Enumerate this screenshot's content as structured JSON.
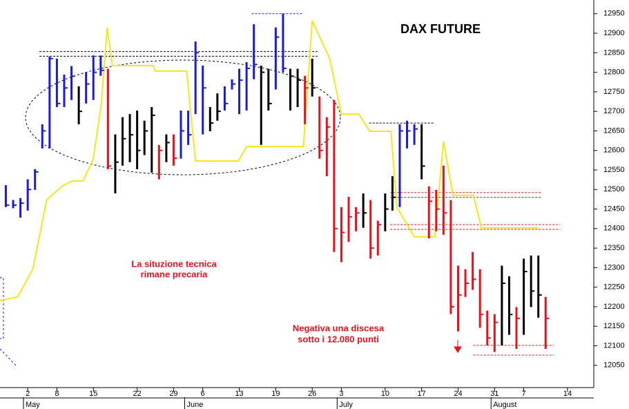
{
  "chart_data": {
    "type": "ohlc",
    "title": "DAX FUTURE",
    "annotations": [
      "La situzione tecnica",
      "rimane precaria",
      "Negativa una discesa",
      "sotto i 12.080 punti"
    ],
    "xlim": [
      -3.8,
      77.6
    ],
    "ylim": [
      11993,
      12985
    ],
    "yticks": [
      12050,
      12100,
      12150,
      12200,
      12250,
      12300,
      12350,
      12400,
      12450,
      12500,
      12550,
      12600,
      12650,
      12700,
      12750,
      12800,
      12850,
      12900,
      12950
    ],
    "xticks": [
      {
        "value": 0,
        "label": "2"
      },
      {
        "value": 4,
        "label": "8"
      },
      {
        "value": 9,
        "label": "15"
      },
      {
        "value": 15,
        "label": "22"
      },
      {
        "value": 20,
        "label": "29"
      },
      {
        "value": 24,
        "label": "6"
      },
      {
        "value": 29,
        "label": "13"
      },
      {
        "value": 34,
        "label": "19"
      },
      {
        "value": 39,
        "label": "26"
      },
      {
        "value": 43,
        "label": "3"
      },
      {
        "value": 49,
        "label": "10"
      },
      {
        "value": 54,
        "label": "17"
      },
      {
        "value": 59,
        "label": "24"
      },
      {
        "value": 64,
        "label": "31"
      },
      {
        "value": 68,
        "label": "7"
      },
      {
        "value": 74,
        "label": "14"
      }
    ],
    "months": [
      {
        "value": -0.3,
        "label": "May"
      },
      {
        "value": 21.8,
        "label": "June"
      },
      {
        "value": 42.7,
        "label": "July"
      },
      {
        "value": 63.8,
        "label": "August"
      }
    ],
    "x": [
      -3,
      -2,
      -1,
      0,
      1,
      2,
      3,
      4,
      5,
      6,
      7,
      8,
      9,
      10,
      11,
      12,
      13,
      14,
      15,
      16,
      17,
      18,
      19,
      20,
      21,
      22,
      23,
      24,
      25,
      26,
      27,
      28,
      29,
      30,
      31,
      32,
      33,
      34,
      35,
      36,
      37,
      38,
      39,
      40,
      41,
      42,
      43,
      44,
      45,
      46,
      47,
      48,
      49,
      50,
      51,
      52,
      53,
      54,
      55,
      56,
      57,
      58,
      59,
      60,
      61,
      62,
      63,
      64,
      65,
      66,
      67,
      68,
      69,
      70,
      71
    ],
    "high": [
      12511,
      12473,
      12478,
      12526,
      12552,
      12667,
      12840,
      12835,
      12794,
      12816,
      12764,
      12800,
      12843,
      12843,
      12809,
      12641,
      12685,
      12693,
      12702,
      12676,
      12711,
      12614,
      12641,
      12641,
      12702,
      12702,
      12879,
      12817,
      12711,
      12746,
      12764,
      12782,
      12809,
      12826,
      12923,
      12817,
      12809,
      12915,
      12950,
      12809,
      12809,
      12791,
      12835,
      12738,
      12685,
      12729,
      12455,
      12481,
      12455,
      12490,
      12473,
      12420,
      12490,
      12534,
      12667,
      12676,
      12667,
      12667,
      12508,
      12499,
      12561,
      12473,
      12305,
      12296,
      12340,
      12296,
      12190,
      12181,
      12305,
      12278,
      12199,
      12323,
      12331,
      12331,
      12225
    ],
    "low": [
      12455,
      12452,
      12428,
      12446,
      12499,
      12605,
      12605,
      12711,
      12711,
      12729,
      12667,
      12720,
      12729,
      12791,
      12552,
      12490,
      12561,
      12570,
      12552,
      12588,
      12543,
      12526,
      12570,
      12561,
      12579,
      12614,
      12693,
      12641,
      12649,
      12676,
      12702,
      12756,
      12693,
      12702,
      12782,
      12614,
      12702,
      12756,
      12800,
      12702,
      12711,
      12667,
      12738,
      12579,
      12534,
      12340,
      12314,
      12366,
      12393,
      12402,
      12323,
      12331,
      12393,
      12446,
      12455,
      12605,
      12614,
      12526,
      12375,
      12393,
      12384,
      12181,
      12137,
      12225,
      12243,
      12146,
      12101,
      12084,
      12101,
      12128,
      12092,
      12128,
      12199,
      12172,
      12092
    ],
    "close": [
      12460,
      12460,
      12465,
      12500,
      12545,
      12650,
      12835,
      12720,
      12760,
      12790,
      12700,
      12770,
      12800,
      12805,
      12560,
      12570,
      12630,
      12640,
      12600,
      12650,
      12690,
      12600,
      12620,
      12580,
      12650,
      12640,
      12850,
      12760,
      12670,
      12700,
      12720,
      12770,
      12780,
      12810,
      12820,
      12800,
      12720,
      12890,
      12810,
      12790,
      12780,
      12760,
      12760,
      12600,
      12660,
      12400,
      12390,
      12430,
      12440,
      12440,
      12350,
      12410,
      12450,
      12480,
      12650,
      12650,
      12655,
      12560,
      12470,
      12450,
      12440,
      12200,
      12230,
      12260,
      12270,
      12180,
      12120,
      12160,
      12260,
      12180,
      12170,
      12290,
      12240,
      12230,
      12170
    ],
    "colors": [
      "#1a1adb",
      "#1a1adb",
      "#1a1adb",
      "#1a1adb",
      "#1a1adb",
      "#1a1adb",
      "#1a1adb",
      "#1a1adb",
      "#1a1adb",
      "#1a1adb",
      "#000000",
      "#1a1adb",
      "#1a1adb",
      "#1a1adb",
      "#e8101a",
      "#000000",
      "#000000",
      "#000000",
      "#000000",
      "#000000",
      "#000000",
      "#e8101a",
      "#000000",
      "#e8101a",
      "#1a1adb",
      "#1a1adb",
      "#1a1adb",
      "#1a1adb",
      "#000000",
      "#000000",
      "#1a1adb",
      "#1a1adb",
      "#1a1adb",
      "#1a1adb",
      "#1a1adb",
      "#000000",
      "#000000",
      "#1a1adb",
      "#1a1adb",
      "#000000",
      "#000000",
      "#e8101a",
      "#000000",
      "#e8101a",
      "#e8101a",
      "#e8101a",
      "#e8101a",
      "#e8101a",
      "#e8101a",
      "#000000",
      "#e8101a",
      "#e8101a",
      "#000000",
      "#000000",
      "#1a1adb",
      "#1a1adb",
      "#1a1adb",
      "#000000",
      "#e8101a",
      "#e8101a",
      "#e8101a",
      "#e8101a",
      "#e8101a",
      "#e8101a",
      "#e8101a",
      "#e8101a",
      "#e8101a",
      "#e8101a",
      "#000000",
      "#000000",
      "#e8101a",
      "#000000",
      "#000000",
      "#000000",
      "#e8101a"
    ],
    "indicator": {
      "color": "#f5e61a",
      "x": [
        -3.8,
        -1.4,
        0.7,
        2.6,
        4.7,
        6.1,
        7.6,
        9.0,
        10.1,
        10.9,
        11.6,
        17.2,
        17.5,
        21.8,
        23.0,
        28.9,
        30.0,
        37.8,
        39.0,
        41.4,
        43.0,
        45.4,
        46.9,
        49.8,
        50.6,
        53.0,
        55.8,
        57.0,
        58.3,
        61.1,
        62.2,
        70.0
      ],
      "values": [
        12216,
        12225,
        12296,
        12473,
        12508,
        12522,
        12522,
        12579,
        12720,
        12915,
        12817,
        12817,
        12803,
        12803,
        12573,
        12573,
        12610,
        12610,
        12932,
        12835,
        12693,
        12693,
        12649,
        12649,
        12455,
        12379,
        12379,
        12623,
        12485,
        12485,
        12402,
        12402
      ]
    },
    "levels": [
      {
        "value": 12853,
        "x": [
          1.6,
          39.9
        ],
        "color": "#000000"
      },
      {
        "value": 12841,
        "x": [
          1.6,
          39.9
        ],
        "color": "#000000"
      },
      {
        "value": 12950,
        "x": [
          30.7,
          37.8
        ],
        "color": "#1a1adb"
      },
      {
        "value": 12670,
        "x": [
          46.8,
          55.8
        ],
        "color": "#000000"
      },
      {
        "value": 12492,
        "x": [
          49.7,
          70.5
        ],
        "color": "#e8101a"
      },
      {
        "value": 12480,
        "x": [
          49.7,
          70.5
        ],
        "color": "#e8101a"
      },
      {
        "value": 12410,
        "x": [
          49.7,
          73.0
        ],
        "color": "#e8101a"
      },
      {
        "value": 12398,
        "x": [
          49.7,
          73.0
        ],
        "color": "#e8101a"
      },
      {
        "value": 12101,
        "x": [
          61.1,
          72.1
        ],
        "color": "#e8101a"
      },
      {
        "value": 12076,
        "x": [
          61.1,
          72.1
        ],
        "color": "#e8101a"
      }
    ]
  }
}
